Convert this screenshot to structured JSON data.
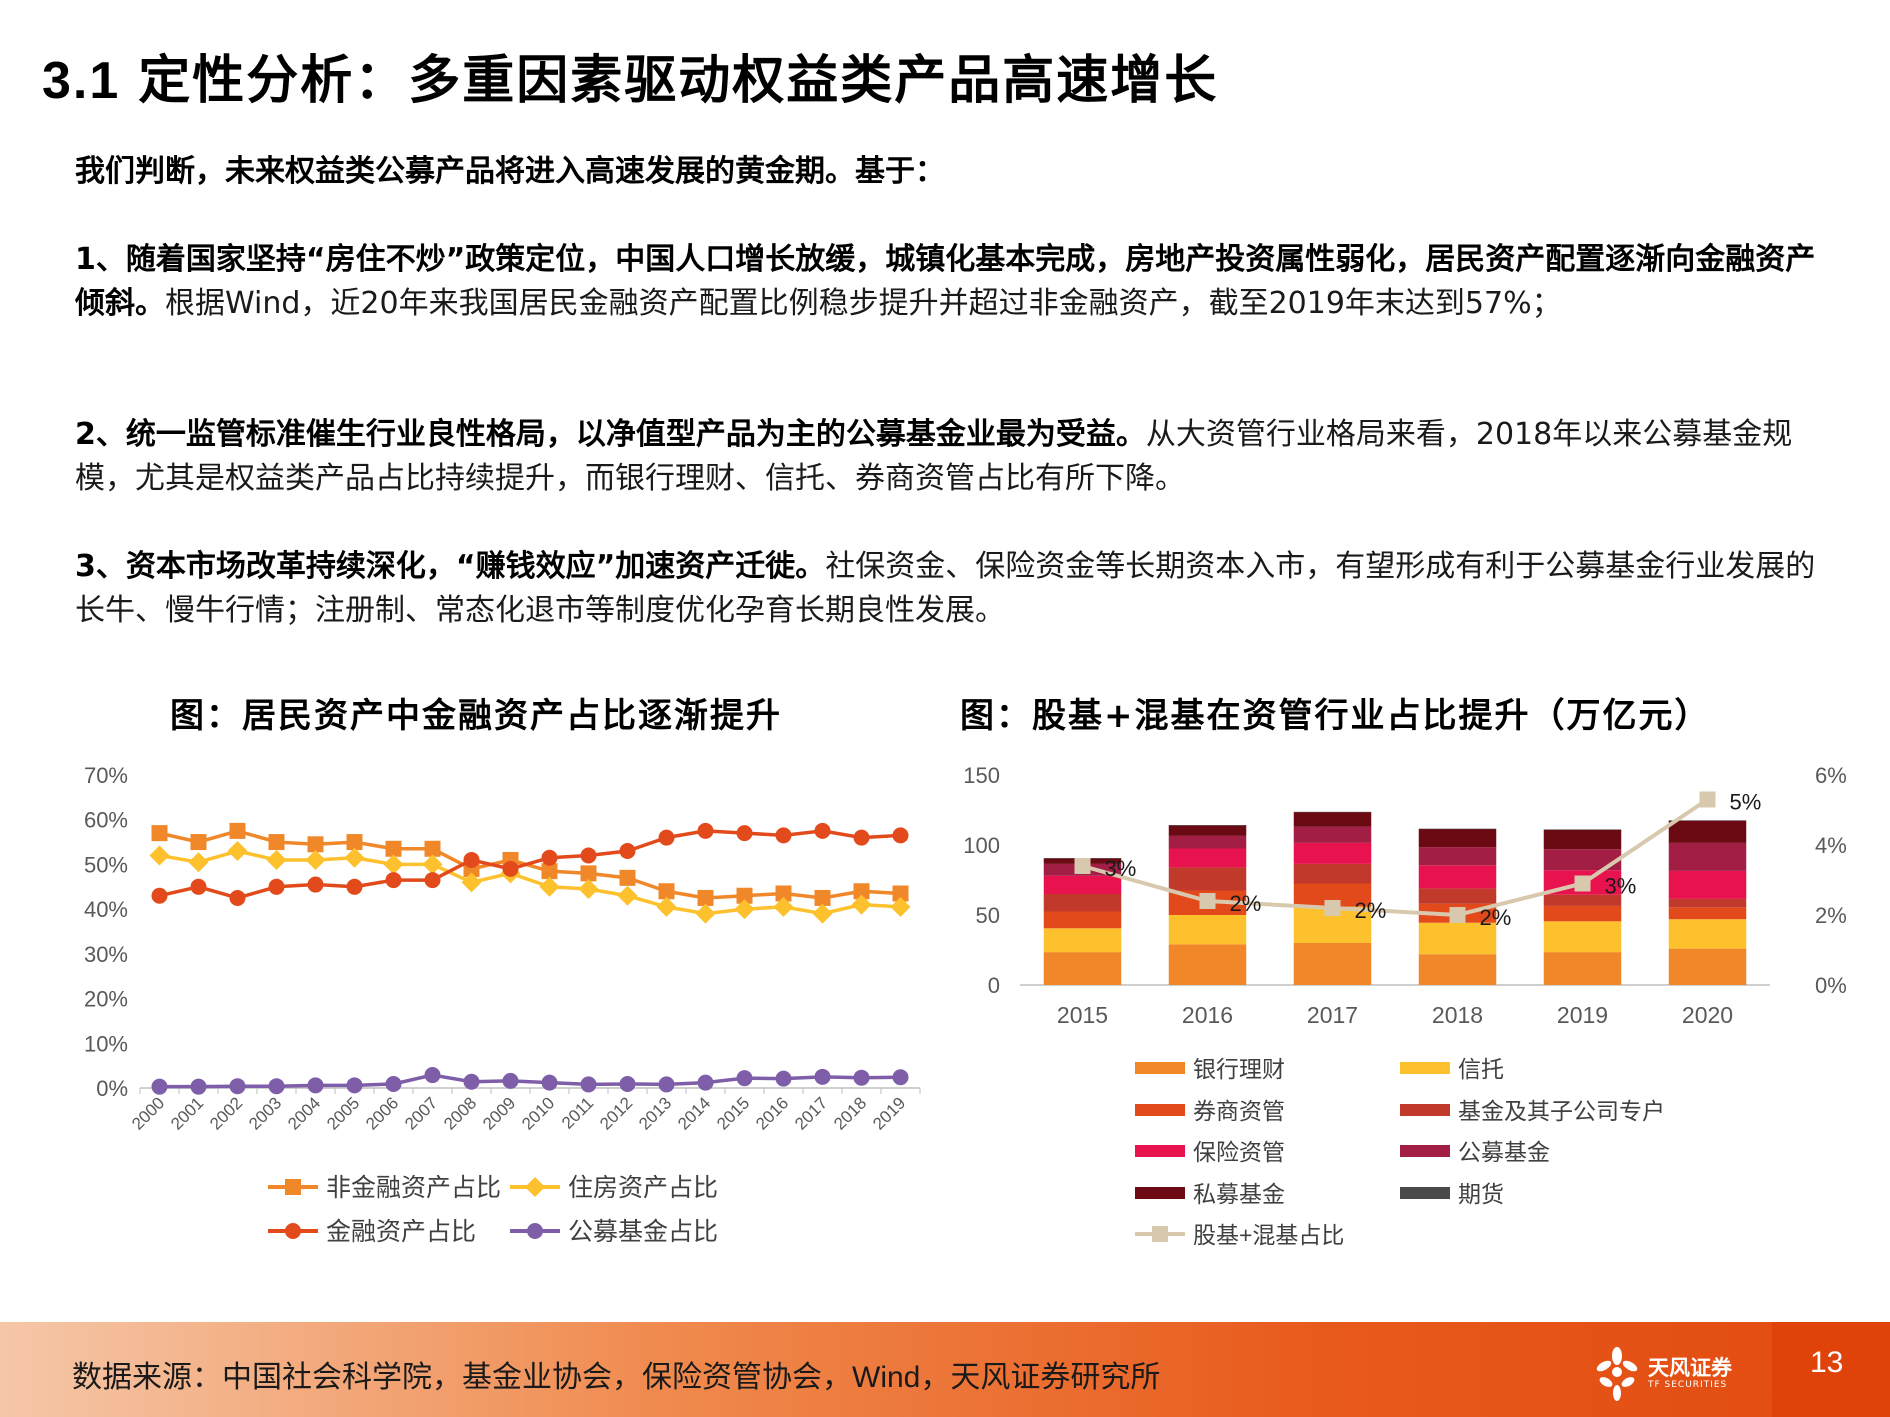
{
  "page": {
    "title_num": "3.1",
    "title": "定性分析：多重因素驱动权益类产品高速增长",
    "intro": "我们判断，未来权益类公募产品将进入高速发展的黄金期。基于：",
    "p1_bold": "1、随着国家坚持“房住不炒”政策定位，中国人口增长放缓，城镇化基本完成，房地产投资属性弱化，居民资产配置逐渐向金融资产倾斜。",
    "p1_rest": "根据Wind，近20年来我国居民金融资产配置比例稳步提升并超过非金融资产，截至2019年末达到57%；",
    "p2_bold": "2、统一监管标准催生行业良性格局，以净值型产品为主的公募基金业最为受益。",
    "p2_rest": "从大资管行业格局来看，2018年以来公募基金规模，尤其是权益类产品占比持续提升，而银行理财、信托、券商资管占比有所下降。",
    "p3_bold": "3、资本市场改革持续深化，“赚钱效应”加速资产迁徙。",
    "p3_rest": "社保资金、保险资金等长期资本入市，有望形成有利于公募基金行业发展的长牛、慢牛行情；注册制、常态化退市等制度优化孕育长期良性发展。",
    "source": "数据来源：中国社会科学院，基金业协会，保险资管协会，Wind，天风证券研究所",
    "logo_text": "天风证券",
    "logo_sub": "TF SECURITIES",
    "page_number": "13"
  },
  "chart_data": [
    {
      "type": "line",
      "title": "图：居民资产中金融资产占比逐渐提升",
      "x": [
        "2000",
        "2001",
        "2002",
        "2003",
        "2004",
        "2005",
        "2006",
        "2007",
        "2008",
        "2009",
        "2010",
        "2011",
        "2012",
        "2013",
        "2014",
        "2015",
        "2016",
        "2017",
        "2018",
        "2019"
      ],
      "y_ticks": [
        "0%",
        "10%",
        "20%",
        "30%",
        "40%",
        "50%",
        "60%",
        "70%"
      ],
      "ylim": [
        0,
        70
      ],
      "legend_position": "bottom",
      "series": [
        {
          "name": "非金融资产占比",
          "color": "#f0882a",
          "marker": "square",
          "values": [
            57,
            55,
            57.5,
            55,
            54.5,
            55,
            53.5,
            53.5,
            49,
            51,
            48.5,
            48,
            47,
            44,
            42.5,
            43,
            43.5,
            42.5,
            44,
            43.5
          ]
        },
        {
          "name": "住房资产占比",
          "color": "#fcc12d",
          "marker": "diamond",
          "values": [
            52,
            50.5,
            53,
            51,
            51,
            51.5,
            50,
            50,
            46,
            48,
            45,
            44.5,
            43,
            40.5,
            39,
            40,
            40.5,
            39,
            41,
            40.5
          ]
        },
        {
          "name": "金融资产占比",
          "color": "#e24a1c",
          "marker": "circle",
          "values": [
            43,
            45,
            42.5,
            45,
            45.5,
            45,
            46.5,
            46.5,
            51,
            49,
            51.5,
            52,
            53,
            56,
            57.5,
            57,
            56.5,
            57.5,
            56,
            56.5
          ]
        },
        {
          "name": "公募基金占比",
          "color": "#7e5ea8",
          "marker": "circle",
          "values": [
            0.3,
            0.3,
            0.4,
            0.4,
            0.6,
            0.6,
            0.9,
            2.9,
            1.4,
            1.6,
            1.2,
            0.8,
            0.9,
            0.8,
            1.2,
            2.2,
            2.1,
            2.5,
            2.3,
            2.4
          ]
        }
      ]
    },
    {
      "type": "bar",
      "stacked": true,
      "title": "图：股基+混基在资管行业占比提升（万亿元）",
      "categories": [
        "2015",
        "2016",
        "2017",
        "2018",
        "2019",
        "2020"
      ],
      "y_ticks": [
        "0",
        "50",
        "100",
        "150"
      ],
      "ylim": [
        0,
        150
      ],
      "y2_ticks": [
        "0%",
        "2%",
        "4%",
        "6%"
      ],
      "y2lim": [
        0,
        6
      ],
      "legend_position": "bottom",
      "series": [
        {
          "name": "银行理财",
          "color": "#f0882a",
          "values": [
            23.5,
            29,
            30,
            22,
            23.5,
            26
          ]
        },
        {
          "name": "信托",
          "color": "#fcc12d",
          "values": [
            17,
            21,
            26,
            22.5,
            22,
            21
          ]
        },
        {
          "name": "券商资管",
          "color": "#e24a1c",
          "values": [
            12,
            17.5,
            16.5,
            13.5,
            11,
            8.5
          ]
        },
        {
          "name": "基金及其子公司专户",
          "color": "#c0392b",
          "values": [
            12.5,
            16.5,
            14,
            11,
            8,
            6
          ]
        },
        {
          "name": "保险资管",
          "color": "#e8124f",
          "values": [
            13,
            13.5,
            15,
            16.5,
            17.5,
            20
          ]
        },
        {
          "name": "公募基金",
          "color": "#a21e45",
          "values": [
            8.5,
            9,
            11.5,
            13,
            15,
            20
          ]
        },
        {
          "name": "私募基金",
          "color": "#6b0a12",
          "values": [
            4,
            7.5,
            10.5,
            13,
            14,
            16
          ]
        },
        {
          "name": "期货",
          "color": "#4a4a4a",
          "values": [
            0.1,
            0.2,
            0.2,
            0.1,
            0.1,
            0.1
          ]
        }
      ],
      "line_series": {
        "name": "股基+混基占比",
        "color": "#d8c9ae",
        "axis": "right",
        "values": [
          3.4,
          2.4,
          2.2,
          2.0,
          2.9,
          5.3
        ],
        "labels": [
          "3%",
          "2%",
          "2%",
          "2%",
          "3%",
          "5%"
        ]
      }
    }
  ]
}
